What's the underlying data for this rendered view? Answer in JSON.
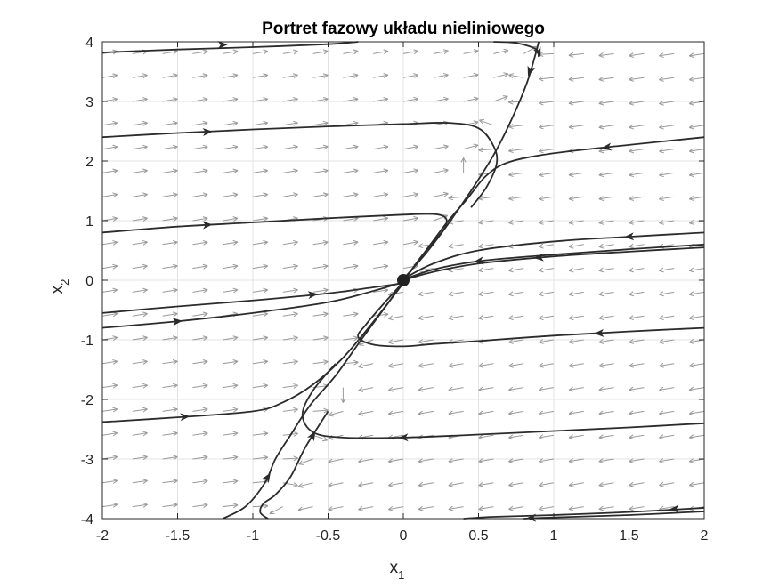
{
  "chart_data": {
    "type": "line",
    "title": "Portret fazowy układu nieliniowego",
    "xlabel": {
      "main": "x",
      "sub": "1"
    },
    "ylabel": {
      "main": "x",
      "sub": "2"
    },
    "xlim": [
      -2,
      2
    ],
    "ylim": [
      -4,
      4
    ],
    "xticks": [
      -2,
      -1.5,
      -1,
      -0.5,
      0,
      0.5,
      1,
      1.5,
      2
    ],
    "xtick_labels": [
      "-2",
      "-1.5",
      "-1",
      "-0.5",
      "0",
      "0.5",
      "1",
      "1.5",
      "2"
    ],
    "yticks": [
      -4,
      -3,
      -2,
      -1,
      0,
      1,
      2,
      3,
      4
    ],
    "ytick_labels": [
      "-4",
      "-3",
      "-2",
      "-1",
      "0",
      "1",
      "2",
      "3",
      "4"
    ],
    "grid": true,
    "equilibrium": {
      "x": 0,
      "y": 0
    },
    "vector_field": {
      "description_grid_x": [
        -2,
        -1.8,
        -1.6,
        -1.4,
        -1.2,
        -1.0,
        -0.8,
        -0.6,
        -0.4,
        -0.2,
        0,
        0.2,
        0.4,
        0.6,
        0.8,
        1.0,
        1.2,
        1.4,
        1.6,
        1.8,
        2.0
      ],
      "description_grid_y": [
        -3.8,
        -3.4,
        -3.0,
        -2.6,
        -2.2,
        -1.8,
        -1.4,
        -1.0,
        -0.6,
        -0.2,
        0.2,
        0.6,
        1.0,
        1.4,
        1.8,
        2.2,
        2.6,
        3.0,
        3.4,
        3.8
      ],
      "color": "#9a9a9a"
    },
    "trajectories": [
      {
        "points": [
          [
            -2,
            3.82
          ],
          [
            -1.5,
            3.87
          ],
          [
            -1.0,
            3.91
          ],
          [
            -0.5,
            3.96
          ],
          [
            -0.3,
            4.0
          ]
        ],
        "arrow_at": [
          -1.2,
          3.95
        ],
        "direction": 1
      },
      {
        "points": [
          [
            -2,
            2.4
          ],
          [
            -1.5,
            2.47
          ],
          [
            -1.0,
            2.53
          ],
          [
            -0.5,
            2.58
          ],
          [
            0,
            2.62
          ],
          [
            0.3,
            2.64
          ],
          [
            0.5,
            2.55
          ],
          [
            0.6,
            2.25
          ],
          [
            0.62,
            1.95
          ],
          [
            0.55,
            1.55
          ],
          [
            0.45,
            1.22
          ]
        ],
        "arrow_at": [
          -1.3,
          2.49
        ],
        "direction": 1
      },
      {
        "points": [
          [
            -2,
            0.8
          ],
          [
            -1.5,
            0.9
          ],
          [
            -1.0,
            0.97
          ],
          [
            -0.5,
            1.04
          ],
          [
            0,
            1.1
          ],
          [
            0.2,
            1.11
          ],
          [
            0.28,
            1.05
          ],
          [
            0.28,
            0.9
          ],
          [
            0.22,
            0.7
          ],
          [
            0.12,
            0.4
          ],
          [
            0.02,
            0.05
          ]
        ],
        "arrow_at": [
          -1.3,
          0.93
        ],
        "direction": 1
      },
      {
        "points": [
          [
            -2,
            -0.55
          ],
          [
            -1.5,
            -0.44
          ],
          [
            -1.0,
            -0.34
          ],
          [
            -0.5,
            -0.22
          ],
          [
            -0.2,
            -0.12
          ],
          [
            0,
            -0.05
          ]
        ],
        "arrow_at": [
          -0.6,
          -0.24
        ],
        "direction": 1
      },
      {
        "points": [
          [
            -2,
            -0.8
          ],
          [
            -1.5,
            -0.69
          ],
          [
            -1.0,
            -0.55
          ],
          [
            -0.5,
            -0.37
          ],
          [
            -0.2,
            -0.18
          ],
          [
            0,
            -0.03
          ]
        ],
        "arrow_at": [
          -1.5,
          -0.69
        ],
        "direction": 1
      },
      {
        "points": [
          [
            -2,
            -2.38
          ],
          [
            -1.5,
            -2.3
          ],
          [
            -1.0,
            -2.2
          ],
          [
            -0.8,
            -2.05
          ],
          [
            -0.6,
            -1.75
          ],
          [
            -0.4,
            -1.3
          ],
          [
            -0.2,
            -0.7
          ],
          [
            0,
            -0.05
          ]
        ],
        "arrow_at": [
          -1.45,
          -2.29
        ],
        "direction": 1
      },
      {
        "points": [
          [
            -1.2,
            -4.0
          ],
          [
            -1.05,
            -3.8
          ],
          [
            -0.92,
            -3.4
          ],
          [
            -0.85,
            -3.0
          ],
          [
            -0.75,
            -2.6
          ],
          [
            -0.62,
            -2.1
          ],
          [
            -0.45,
            -1.6
          ],
          [
            -0.28,
            -1.0
          ],
          [
            -0.12,
            -0.45
          ],
          [
            0,
            -0.02
          ]
        ],
        "arrow_at": [
          -0.9,
          -3.3
        ],
        "direction": 1
      },
      {
        "points": [
          [
            2,
            2.4
          ],
          [
            1.5,
            2.27
          ],
          [
            1.0,
            2.13
          ],
          [
            0.7,
            1.98
          ],
          [
            0.55,
            1.75
          ],
          [
            0.42,
            1.35
          ],
          [
            0.3,
            1.0
          ],
          [
            0.18,
            0.6
          ],
          [
            0.05,
            0.15
          ],
          [
            0,
            0.02
          ]
        ],
        "arrow_at": [
          1.35,
          2.23
        ],
        "direction": -1
      },
      {
        "points": [
          [
            2,
            0.8
          ],
          [
            1.5,
            0.73
          ],
          [
            1.0,
            0.65
          ],
          [
            0.5,
            0.5
          ],
          [
            0.2,
            0.28
          ],
          [
            0,
            0.02
          ]
        ],
        "arrow_at": [
          1.5,
          0.73
        ],
        "direction": -1
      },
      {
        "points": [
          [
            2,
            0.6
          ],
          [
            1.5,
            0.52
          ],
          [
            1.0,
            0.43
          ],
          [
            0.5,
            0.32
          ],
          [
            0.2,
            0.18
          ],
          [
            0,
            0.01
          ]
        ],
        "arrow_at": [
          0.5,
          0.32
        ],
        "direction": -1
      },
      {
        "points": [
          [
            2,
            0.55
          ],
          [
            1.5,
            0.48
          ],
          [
            1.0,
            0.4
          ],
          [
            0.5,
            0.28
          ],
          [
            0.2,
            0.14
          ],
          [
            0,
            0.0
          ]
        ],
        "arrow_at": [
          0.9,
          0.38
        ],
        "direction": -1
      },
      {
        "points": [
          [
            2,
            -0.8
          ],
          [
            1.5,
            -0.86
          ],
          [
            1.0,
            -0.93
          ],
          [
            0.5,
            -1.02
          ],
          [
            0.2,
            -1.07
          ],
          [
            0,
            -1.11
          ],
          [
            -0.2,
            -1.08
          ],
          [
            -0.3,
            -0.95
          ],
          [
            -0.25,
            -0.75
          ],
          [
            -0.15,
            -0.45
          ],
          [
            0,
            -0.03
          ]
        ],
        "arrow_at": [
          1.3,
          -0.89
        ],
        "direction": -1
      },
      {
        "points": [
          [
            2,
            -2.4
          ],
          [
            1.5,
            -2.47
          ],
          [
            1.0,
            -2.53
          ],
          [
            0.5,
            -2.59
          ],
          [
            0,
            -2.64
          ],
          [
            -0.4,
            -2.64
          ],
          [
            -0.6,
            -2.55
          ],
          [
            -0.67,
            -2.25
          ],
          [
            -0.6,
            -1.85
          ],
          [
            -0.45,
            -1.4
          ]
        ],
        "arrow_at": [
          0.0,
          -2.64
        ],
        "direction": -1
      },
      {
        "points": [
          [
            2,
            -3.82
          ],
          [
            1.5,
            -3.89
          ],
          [
            1.0,
            -3.94
          ],
          [
            0.6,
            -3.97
          ],
          [
            0.4,
            -4.0
          ]
        ],
        "arrow_at": [
          1.8,
          -3.84
        ],
        "direction": -1
      },
      {
        "points": [
          [
            2,
            -3.88
          ],
          [
            1.5,
            -3.94
          ],
          [
            1.0,
            -3.98
          ],
          [
            0.8,
            -4.0
          ]
        ],
        "arrow_at": [
          0.85,
          -3.99
        ],
        "direction": -1
      },
      {
        "points": [
          [
            -0.9,
            -4.0
          ],
          [
            -0.95,
            -3.9
          ],
          [
            -0.93,
            -3.75
          ],
          [
            -0.85,
            -3.6
          ],
          [
            -0.75,
            -3.3
          ],
          [
            -0.65,
            -2.8
          ],
          [
            -0.5,
            -2.2
          ]
        ],
        "arrow_at": [
          -0.6,
          -2.6
        ],
        "direction": 1
      },
      {
        "points": [
          [
            0.9,
            4.0
          ],
          [
            0.88,
            3.8
          ],
          [
            0.82,
            3.3
          ],
          [
            0.72,
            2.7
          ],
          [
            0.6,
            2.1
          ],
          [
            0.45,
            1.5
          ],
          [
            0.3,
            0.95
          ],
          [
            0.15,
            0.45
          ],
          [
            0,
            0.02
          ]
        ],
        "arrow_at": [
          0.84,
          3.5
        ],
        "direction": -1
      },
      {
        "points": [
          [
            0.6,
            4.0
          ],
          [
            0.75,
            3.98
          ],
          [
            0.88,
            3.88
          ],
          [
            0.9,
            3.75
          ]
        ],
        "arrow_at": [
          0.9,
          3.82
        ],
        "direction": 1
      }
    ]
  }
}
